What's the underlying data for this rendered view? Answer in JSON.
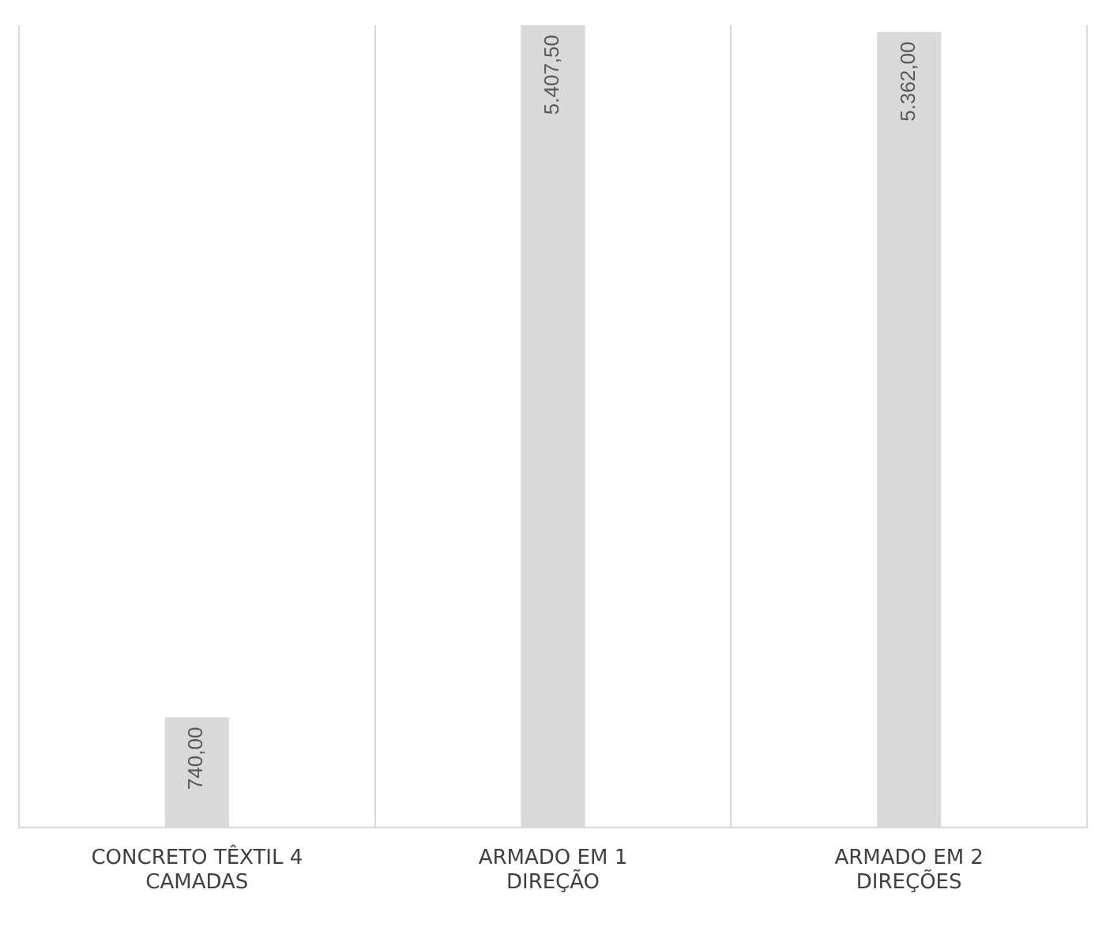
{
  "chart_data": {
    "type": "bar",
    "categories": [
      "CONCRETO TÊXTIL 4 CAMADAS",
      "ARMADO EM 1 DIREÇÃO",
      "ARMADO EM 2 DIREÇÕES"
    ],
    "values": [
      740.0,
      5407.5,
      5362.0
    ],
    "value_labels": [
      "740,00",
      "5.407,50",
      "5.362,00"
    ],
    "color": "#d9d9d9",
    "grid": "x",
    "legend": false,
    "tick_labels": "x"
  }
}
